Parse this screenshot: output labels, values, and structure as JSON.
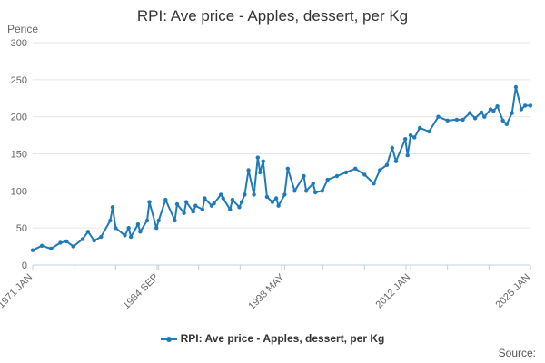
{
  "chart_data": {
    "type": "line",
    "title": "RPI: Ave price - Apples, dessert, per Kg",
    "ylabel": "Pence",
    "ylim": [
      0,
      300
    ],
    "yticks": [
      0,
      50,
      100,
      150,
      200,
      250,
      300
    ],
    "xlim": [
      "1971 JAN",
      "2025 JAN"
    ],
    "xticks": [
      "1971 JAN",
      "1984 SEP",
      "1998 MAY",
      "2012 JAN",
      "2025 JAN"
    ],
    "grid": true,
    "legend_position": "bottom",
    "color": "#1f7ab8",
    "series": [
      {
        "name": "RPI: Ave price - Apples, dessert, per Kg",
        "x": [
          "1971-01",
          "1972-01",
          "1973-01",
          "1974-01",
          "1974-09",
          "1975-06",
          "1976-06",
          "1977-01",
          "1977-09",
          "1978-06",
          "1979-06",
          "1979-09",
          "1980-01",
          "1981-01",
          "1981-06",
          "1981-09",
          "1982-06",
          "1982-09",
          "1983-06",
          "1983-09",
          "1984-06",
          "1984-09",
          "1985-06",
          "1986-06",
          "1986-09",
          "1987-06",
          "1987-09",
          "1988-06",
          "1988-09",
          "1989-06",
          "1989-09",
          "1990-06",
          "1990-09",
          "1991-06",
          "1991-09",
          "1992-06",
          "1992-09",
          "1993-06",
          "1993-09",
          "1994-01",
          "1994-06",
          "1995-01",
          "1995-06",
          "1995-09",
          "1996-01",
          "1996-06",
          "1997-01",
          "1997-06",
          "1997-09",
          "1998-05",
          "1998-09",
          "1999-06",
          "2000-06",
          "2000-09",
          "2001-06",
          "2001-09",
          "2002-06",
          "2003-01",
          "2004-01",
          "2005-01",
          "2006-01",
          "2007-01",
          "2008-01",
          "2008-09",
          "2009-06",
          "2010-01",
          "2010-06",
          "2011-06",
          "2011-09",
          "2012-01",
          "2012-06",
          "2013-01",
          "2014-01",
          "2015-01",
          "2016-01",
          "2017-01",
          "2017-09",
          "2018-06",
          "2019-01",
          "2019-09",
          "2020-01",
          "2020-09",
          "2021-01",
          "2021-06",
          "2022-01",
          "2022-06",
          "2023-01",
          "2023-06",
          "2024-01",
          "2024-06",
          "2025-01"
        ],
        "values": [
          20,
          26,
          22,
          30,
          32,
          25,
          35,
          45,
          33,
          38,
          60,
          78,
          50,
          40,
          50,
          38,
          55,
          45,
          60,
          85,
          50,
          60,
          88,
          60,
          82,
          70,
          85,
          72,
          80,
          75,
          90,
          80,
          83,
          95,
          90,
          75,
          88,
          78,
          85,
          95,
          128,
          95,
          145,
          125,
          140,
          92,
          85,
          90,
          80,
          95,
          130,
          100,
          120,
          100,
          110,
          98,
          100,
          115,
          120,
          125,
          130,
          122,
          110,
          128,
          135,
          158,
          140,
          170,
          148,
          175,
          172,
          185,
          180,
          200,
          195,
          196,
          196,
          205,
          198,
          206,
          200,
          210,
          208,
          214,
          195,
          190,
          205,
          240,
          210,
          215,
          215
        ]
      }
    ]
  },
  "legend": {
    "label": "RPI: Ave price - Apples, dessert, per Kg"
  },
  "source": {
    "label": "Source:"
  }
}
